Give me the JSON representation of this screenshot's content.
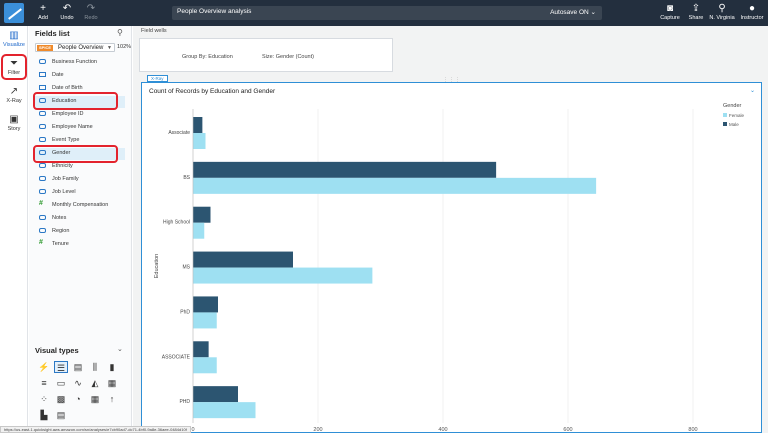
{
  "toolbar": {
    "add_label": "Add",
    "undo_label": "Undo",
    "redo_label": "Redo",
    "analysis_title": "People Overview analysis",
    "autosave_label": "Autosave ON",
    "capture_label": "Capture",
    "share_label": "Share",
    "region_label": "N. Virginia",
    "user_label": "Instructor"
  },
  "rail": {
    "visualize_label": "Visualize",
    "filter_label": "Filter",
    "xray_label": "X-Ray",
    "story_label": "Story"
  },
  "fields_panel": {
    "title": "Fields list",
    "dataset_tag": "SPICE",
    "dataset_name": "People Overview",
    "dataset_pct": "102%",
    "fields": [
      {
        "name": "Business Function",
        "type": "dim"
      },
      {
        "name": "Date",
        "type": "date"
      },
      {
        "name": "Date of Birth",
        "type": "date"
      },
      {
        "name": "Education",
        "type": "dim",
        "selected": true
      },
      {
        "name": "Employee ID",
        "type": "dim"
      },
      {
        "name": "Employee Name",
        "type": "dim"
      },
      {
        "name": "Event Type",
        "type": "dim"
      },
      {
        "name": "Gender",
        "type": "dim",
        "selected": true
      },
      {
        "name": "Ethnicity",
        "type": "dim"
      },
      {
        "name": "Job Family",
        "type": "dim"
      },
      {
        "name": "Job Level",
        "type": "dim"
      },
      {
        "name": "Monthly Compensation",
        "type": "num"
      },
      {
        "name": "Notes",
        "type": "dim"
      },
      {
        "name": "Region",
        "type": "dim"
      },
      {
        "name": "Tenure",
        "type": "num"
      }
    ],
    "visual_types_title": "Visual types"
  },
  "field_wells": {
    "label": "Field wells",
    "group_by": "Group By: Education",
    "size": "Size: Gender (Count)"
  },
  "visual": {
    "tab_label": "X-Ray",
    "title": "Count of Records by Education and Gender"
  },
  "chart_data": {
    "type": "bar",
    "orientation": "horizontal",
    "title": "Count of Records by Education and Gender",
    "ylabel": "Education",
    "xlabel": "",
    "categories": [
      "Associate",
      "BS",
      "High School",
      "MS",
      "PhD",
      "ASSOCIATE",
      "PHD"
    ],
    "series": [
      {
        "name": "Male",
        "color": "#2c5571",
        "values": [
          15,
          485,
          28,
          160,
          40,
          25,
          72
        ]
      },
      {
        "name": "Female",
        "color": "#9ee0f2",
        "values": [
          20,
          645,
          18,
          287,
          38,
          38,
          100
        ]
      }
    ],
    "xlim": [
      0,
      800
    ],
    "xticks": [
      "0",
      "200",
      "400",
      "600",
      "800"
    ],
    "legend_title": "Gender",
    "legend_labels": [
      "Female",
      "Male"
    ],
    "legend_position": "top-right",
    "grid": true
  },
  "status_url": "https://us-east-1.quicksight.aws.amazon.com/sn/analyses/e7cb90ad7-dc71-4bf0-9a8e-36aee-0484d10f"
}
